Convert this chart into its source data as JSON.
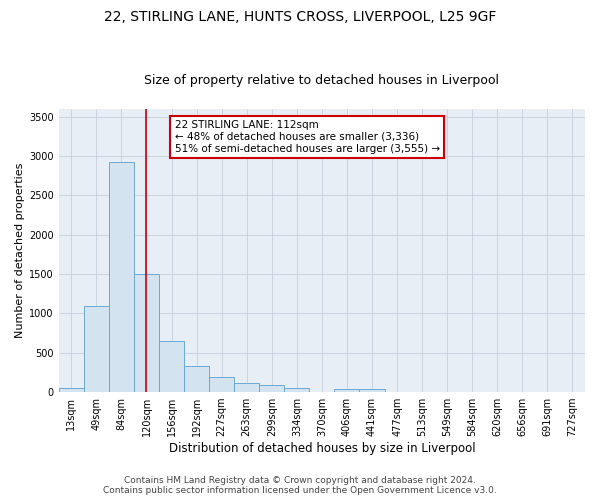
{
  "title1": "22, STIRLING LANE, HUNTS CROSS, LIVERPOOL, L25 9GF",
  "title2": "Size of property relative to detached houses in Liverpool",
  "xlabel": "Distribution of detached houses by size in Liverpool",
  "ylabel": "Number of detached properties",
  "bar_labels": [
    "13sqm",
    "49sqm",
    "84sqm",
    "120sqm",
    "156sqm",
    "192sqm",
    "227sqm",
    "263sqm",
    "299sqm",
    "334sqm",
    "370sqm",
    "406sqm",
    "441sqm",
    "477sqm",
    "513sqm",
    "549sqm",
    "584sqm",
    "620sqm",
    "656sqm",
    "691sqm",
    "727sqm"
  ],
  "bar_values": [
    55,
    1100,
    2930,
    1500,
    650,
    330,
    190,
    110,
    95,
    55,
    0,
    35,
    35,
    0,
    0,
    0,
    0,
    0,
    0,
    0,
    0
  ],
  "bar_color": "#d4e3f0",
  "bar_edge_color": "#6aaad4",
  "property_line_x": 3.0,
  "annotation_text": "22 STIRLING LANE: 112sqm\n← 48% of detached houses are smaller (3,336)\n51% of semi-detached houses are larger (3,555) →",
  "annotation_box_color": "#ffffff",
  "annotation_box_edge_color": "#cc0000",
  "red_line_color": "#cc0000",
  "ylim": [
    0,
    3600
  ],
  "yticks": [
    0,
    500,
    1000,
    1500,
    2000,
    2500,
    3000,
    3500
  ],
  "footer1": "Contains HM Land Registry data © Crown copyright and database right 2024.",
  "footer2": "Contains public sector information licensed under the Open Government Licence v3.0.",
  "bg_color": "#ffffff",
  "plot_bg_color": "#e8eef5",
  "grid_color": "#c5d0dc",
  "title1_fontsize": 10,
  "title2_fontsize": 9,
  "xlabel_fontsize": 8.5,
  "ylabel_fontsize": 8,
  "tick_fontsize": 7,
  "annotation_fontsize": 7.5,
  "footer_fontsize": 6.5
}
